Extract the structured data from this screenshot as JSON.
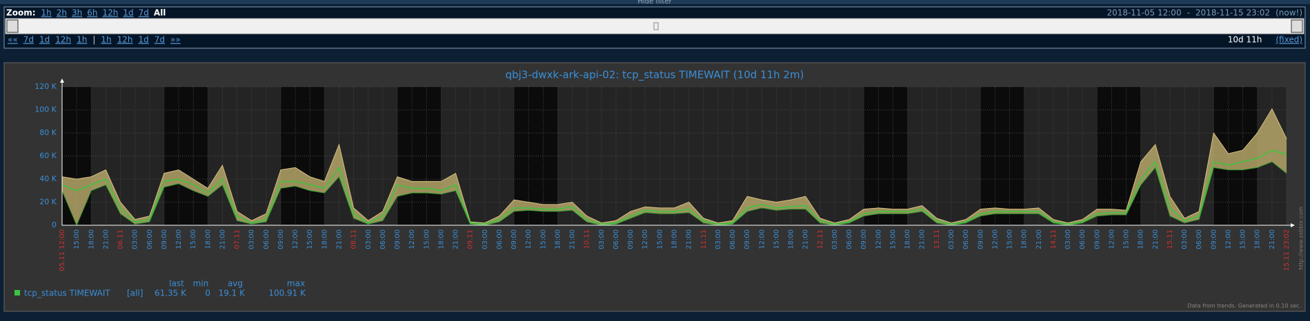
{
  "filter": {
    "hide": "Hide filter",
    "zoom_label": "Zoom:",
    "zoom": [
      "1h",
      "2h",
      "3h",
      "6h",
      "12h",
      "1d",
      "7d"
    ],
    "zoom_active": "All",
    "from": "2018-11-05 12:00",
    "sep": "-",
    "to": "2018-11-15 23:02",
    "now": "(now!)",
    "nav_back": "««",
    "back": [
      "7d",
      "1d",
      "12h",
      "1h"
    ],
    "divider": "|",
    "forward": [
      "1h",
      "12h",
      "1d",
      "7d"
    ],
    "nav_forward": "»»",
    "period": "10d 11h",
    "fixed": "(fixed)"
  },
  "chart_data": {
    "type": "line",
    "title": "qbj3-dwxk-ark-api-02: tcp_status TIMEWAIT (10d 11h 2m)",
    "categories": [
      "05.11 12:00",
      "15:00",
      "18:00",
      "21:00",
      "06.11",
      "03:00",
      "06:00",
      "09:00",
      "12:00",
      "15:00",
      "18:00",
      "21:00",
      "07.11",
      "03:00",
      "06:00",
      "09:00",
      "12:00",
      "15:00",
      "18:00",
      "21:00",
      "08.11",
      "03:00",
      "06:00",
      "09:00",
      "12:00",
      "15:00",
      "18:00",
      "21:00",
      "09.11",
      "03:00",
      "06:00",
      "09:00",
      "12:00",
      "15:00",
      "18:00",
      "21:00",
      "10.11",
      "03:00",
      "06:00",
      "09:00",
      "12:00",
      "15:00",
      "18:00",
      "21:00",
      "11.11",
      "03:00",
      "06:00",
      "09:00",
      "12:00",
      "15:00",
      "18:00",
      "21:00",
      "12.11",
      "03:00",
      "06:00",
      "09:00",
      "12:00",
      "15:00",
      "18:00",
      "21:00",
      "13.11",
      "03:00",
      "06:00",
      "09:00",
      "12:00",
      "15:00",
      "18:00",
      "21:00",
      "14.11",
      "03:00",
      "06:00",
      "09:00",
      "12:00",
      "15:00",
      "18:00",
      "21:00",
      "15.11",
      "03:00",
      "06:00",
      "09:00",
      "12:00",
      "15:00",
      "18:00",
      "21:00",
      "15.11 23:02"
    ],
    "series": [
      {
        "name": "tcp_status TIMEWAIT",
        "color": "#3ec43e",
        "values": [
          35000,
          30000,
          35000,
          40000,
          15000,
          3000,
          5000,
          38000,
          40000,
          35000,
          28000,
          40000,
          8000,
          2000,
          5000,
          38000,
          38000,
          35000,
          32000,
          50000,
          10000,
          2000,
          8000,
          35000,
          32000,
          32000,
          30000,
          35000,
          2000,
          1000,
          5000,
          15000,
          15000,
          14000,
          14000,
          16000,
          5000,
          1000,
          2000,
          8000,
          13000,
          12000,
          12000,
          14000,
          4000,
          1000,
          2000,
          15000,
          18000,
          15000,
          16000,
          17000,
          4000,
          1000,
          3000,
          10000,
          12000,
          12000,
          12000,
          14000,
          4000,
          1000,
          3000,
          10000,
          12000,
          12000,
          12000,
          12000,
          3000,
          1000,
          3000,
          10000,
          11000,
          11000,
          40000,
          55000,
          15000,
          4000,
          8000,
          55000,
          52000,
          55000,
          58000,
          65000,
          61350
        ],
        "max": [
          42000,
          40000,
          42000,
          48000,
          20000,
          5000,
          8000,
          45000,
          48000,
          40000,
          32000,
          52000,
          12000,
          4000,
          10000,
          48000,
          50000,
          42000,
          38000,
          70000,
          15000,
          4000,
          12000,
          42000,
          38000,
          38000,
          38000,
          45000,
          3000,
          2000,
          8000,
          22000,
          20000,
          18000,
          18000,
          20000,
          8000,
          2000,
          4000,
          12000,
          16000,
          15000,
          15000,
          20000,
          6000,
          2000,
          4000,
          25000,
          22000,
          20000,
          22000,
          25000,
          6000,
          2000,
          5000,
          14000,
          15000,
          14000,
          14000,
          17000,
          6000,
          2000,
          5000,
          14000,
          15000,
          14000,
          14000,
          15000,
          5000,
          2000,
          5000,
          14000,
          14000,
          13000,
          55000,
          70000,
          25000,
          6000,
          12000,
          80000,
          62000,
          65000,
          80000,
          100910,
          75000
        ],
        "min": [
          30000,
          0,
          30000,
          35000,
          10000,
          1000,
          3000,
          33000,
          36000,
          30000,
          25000,
          35000,
          4000,
          1000,
          3000,
          32000,
          34000,
          30000,
          28000,
          42000,
          6000,
          1000,
          4000,
          25000,
          28000,
          28000,
          27000,
          30000,
          1000,
          0,
          3000,
          12000,
          13000,
          12000,
          12000,
          13000,
          3000,
          0,
          1000,
          6000,
          11000,
          10000,
          10000,
          11000,
          2000,
          0,
          1000,
          12000,
          15000,
          13000,
          14000,
          14000,
          2000,
          0,
          2000,
          8000,
          10000,
          10000,
          10000,
          12000,
          2000,
          0,
          2000,
          8000,
          10000,
          10000,
          10000,
          10000,
          2000,
          0,
          2000,
          8000,
          9000,
          9000,
          35000,
          50000,
          8000,
          2000,
          5000,
          50000,
          48000,
          48000,
          50000,
          55000,
          45000
        ]
      }
    ],
    "ylim": [
      0,
      120000
    ],
    "yticks": [
      0,
      {
        "value": 20000,
        "label": "20 K"
      },
      {
        "value": 40000,
        "label": "40 K"
      },
      {
        "value": 60000,
        "label": "60 K"
      },
      {
        "value": 80000,
        "label": "80 K"
      },
      {
        "value": 100000,
        "label": "100 K"
      },
      {
        "value": 120000,
        "label": "120 K"
      }
    ],
    "grid": true,
    "band_color": "#b5a66a",
    "legend": {
      "columns": [
        "last",
        "min",
        "avg",
        "max"
      ],
      "scope": "[all]",
      "stats": [
        "61.35 K",
        "0",
        "19.1 K",
        "100.91 K"
      ]
    },
    "footer": "Data from trends. Generated in 0.10 sec.",
    "watermark": "http://www.zabbix.com"
  }
}
